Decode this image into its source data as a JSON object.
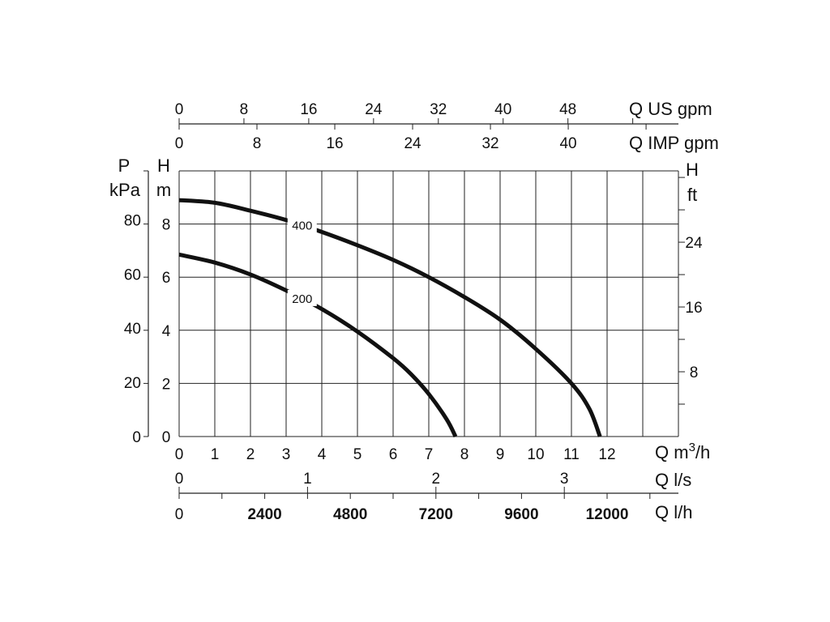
{
  "chart_data": {
    "type": "line",
    "x_axis_bottom": {
      "label": "Q m",
      "label_sup": "3",
      "label_tail": "/h",
      "range": [
        0,
        14
      ],
      "ticks": [
        0,
        1,
        2,
        3,
        4,
        5,
        6,
        7,
        8,
        9,
        10,
        11,
        12
      ]
    },
    "x_axis_ls": {
      "label": "Q l/s",
      "ticks": [
        0,
        1,
        2,
        3
      ]
    },
    "x_axis_lh": {
      "label": "Q l/h",
      "ticks": [
        0,
        2400,
        4800,
        7200,
        9600,
        12000
      ]
    },
    "x_axis_us_gpm": {
      "label": "Q US gpm",
      "ticks": [
        0,
        8,
        16,
        24,
        32,
        40,
        48
      ]
    },
    "x_axis_imp_gpm": {
      "label": "Q IMP gpm",
      "ticks": [
        0,
        8,
        16,
        24,
        32,
        40
      ]
    },
    "y_axis_left_pressure": {
      "label_top": "P",
      "label_unit": "kPa",
      "ticks": [
        0,
        20,
        40,
        60,
        80
      ]
    },
    "y_axis_left_head": {
      "label_top": "H",
      "label_unit": "m",
      "range": [
        0,
        10
      ],
      "ticks": [
        0,
        2,
        4,
        6,
        8
      ]
    },
    "y_axis_right_head": {
      "label_top": "H",
      "label_unit": "ft",
      "ticks": [
        8,
        16,
        24
      ]
    },
    "grid": true,
    "series": [
      {
        "name": "400",
        "x": [
          0,
          1,
          2,
          3,
          4,
          5,
          6,
          7,
          8,
          9,
          10,
          11,
          11.5,
          11.8
        ],
        "y": [
          8.9,
          8.8,
          8.5,
          8.15,
          7.7,
          7.2,
          6.65,
          6.0,
          5.25,
          4.4,
          3.3,
          2.0,
          1.05,
          0
        ]
      },
      {
        "name": "200",
        "x": [
          0,
          1,
          2,
          3,
          4,
          5,
          6,
          6.5,
          7,
          7.5,
          7.75
        ],
        "y": [
          6.85,
          6.55,
          6.1,
          5.5,
          4.8,
          3.95,
          2.95,
          2.35,
          1.6,
          0.65,
          0
        ]
      }
    ]
  }
}
